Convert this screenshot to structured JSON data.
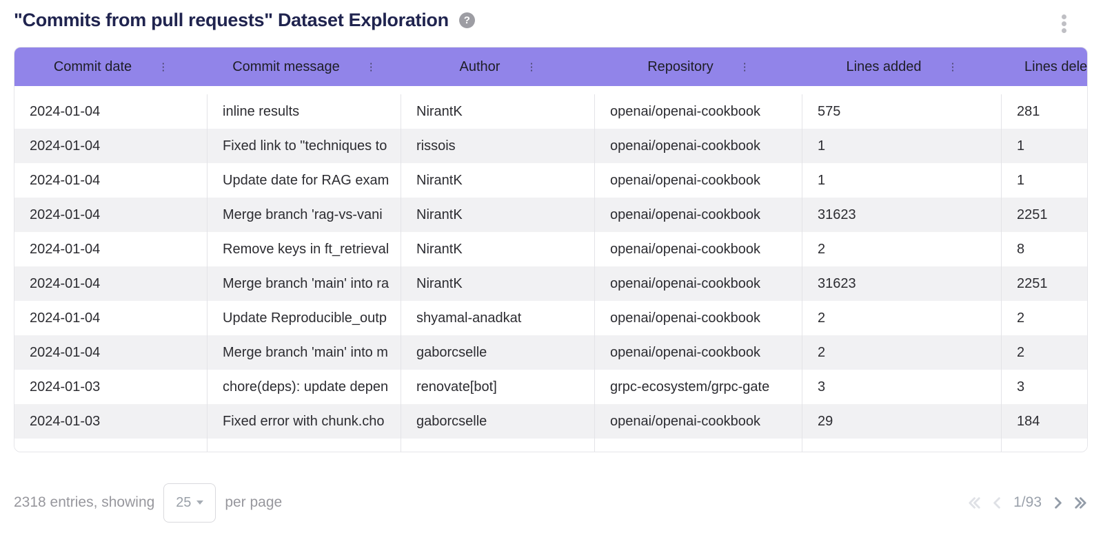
{
  "page": {
    "title": "\"Commits from pull requests\" Dataset Exploration",
    "help_glyph": "?",
    "icons": {
      "help": "question-mark-circle",
      "page_menu": "kebab-vertical",
      "column_menu": "kebab-vertical",
      "page_size_caret": "chevron-down",
      "pagination_first": "chevrons-left",
      "pagination_prev": "chevron-left",
      "pagination_next": "chevron-right",
      "pagination_last": "chevrons-right"
    }
  },
  "table": {
    "column_menu_glyph": "⋮",
    "columns": [
      {
        "label": "Commit date"
      },
      {
        "label": "Commit message"
      },
      {
        "label": "Author"
      },
      {
        "label": "Repository"
      },
      {
        "label": "Lines added"
      },
      {
        "label": "Lines deleted"
      }
    ],
    "rows": [
      {
        "commit_date": "2024-01-04",
        "commit_message": "inline results",
        "author": "NirantK",
        "repository": "openai/openai-cookbook",
        "lines_added": "575",
        "lines_deleted": "281"
      },
      {
        "commit_date": "2024-01-04",
        "commit_message": "Fixed link to \"techniques to",
        "author": "rissois",
        "repository": "openai/openai-cookbook",
        "lines_added": "1",
        "lines_deleted": "1"
      },
      {
        "commit_date": "2024-01-04",
        "commit_message": "Update date for RAG exam",
        "author": "NirantK",
        "repository": "openai/openai-cookbook",
        "lines_added": "1",
        "lines_deleted": "1"
      },
      {
        "commit_date": "2024-01-04",
        "commit_message": "Merge branch 'rag-vs-vani",
        "author": "NirantK",
        "repository": "openai/openai-cookbook",
        "lines_added": "31623",
        "lines_deleted": "2251"
      },
      {
        "commit_date": "2024-01-04",
        "commit_message": "Remove keys in ft_retrieval",
        "author": "NirantK",
        "repository": "openai/openai-cookbook",
        "lines_added": "2",
        "lines_deleted": "8"
      },
      {
        "commit_date": "2024-01-04",
        "commit_message": "Merge branch 'main' into ra",
        "author": "NirantK",
        "repository": "openai/openai-cookbook",
        "lines_added": "31623",
        "lines_deleted": "2251"
      },
      {
        "commit_date": "2024-01-04",
        "commit_message": "Update Reproducible_outp",
        "author": "shyamal-anadkat",
        "repository": "openai/openai-cookbook",
        "lines_added": "2",
        "lines_deleted": "2"
      },
      {
        "commit_date": "2024-01-04",
        "commit_message": "Merge branch 'main' into m",
        "author": "gaborcselle",
        "repository": "openai/openai-cookbook",
        "lines_added": "2",
        "lines_deleted": "2"
      },
      {
        "commit_date": "2024-01-03",
        "commit_message": "chore(deps): update depen",
        "author": "renovate[bot]",
        "repository": "grpc-ecosystem/grpc-gate",
        "lines_added": "3",
        "lines_deleted": "3"
      },
      {
        "commit_date": "2024-01-03",
        "commit_message": "Fixed error with chunk.cho",
        "author": "gaborcselle",
        "repository": "openai/openai-cookbook",
        "lines_added": "29",
        "lines_deleted": "184"
      }
    ]
  },
  "footer": {
    "entries_text": "2318 entries, showing",
    "page_size": "25",
    "per_page_text": "per page",
    "page_indicator": "1/93"
  },
  "colors": {
    "header_purple": "#9184e9",
    "title_navy": "#20244f",
    "stripe_gray": "#f1f1f3",
    "pagination_disabled": "#dfe1e6",
    "pagination_enabled": "#939ca8"
  }
}
